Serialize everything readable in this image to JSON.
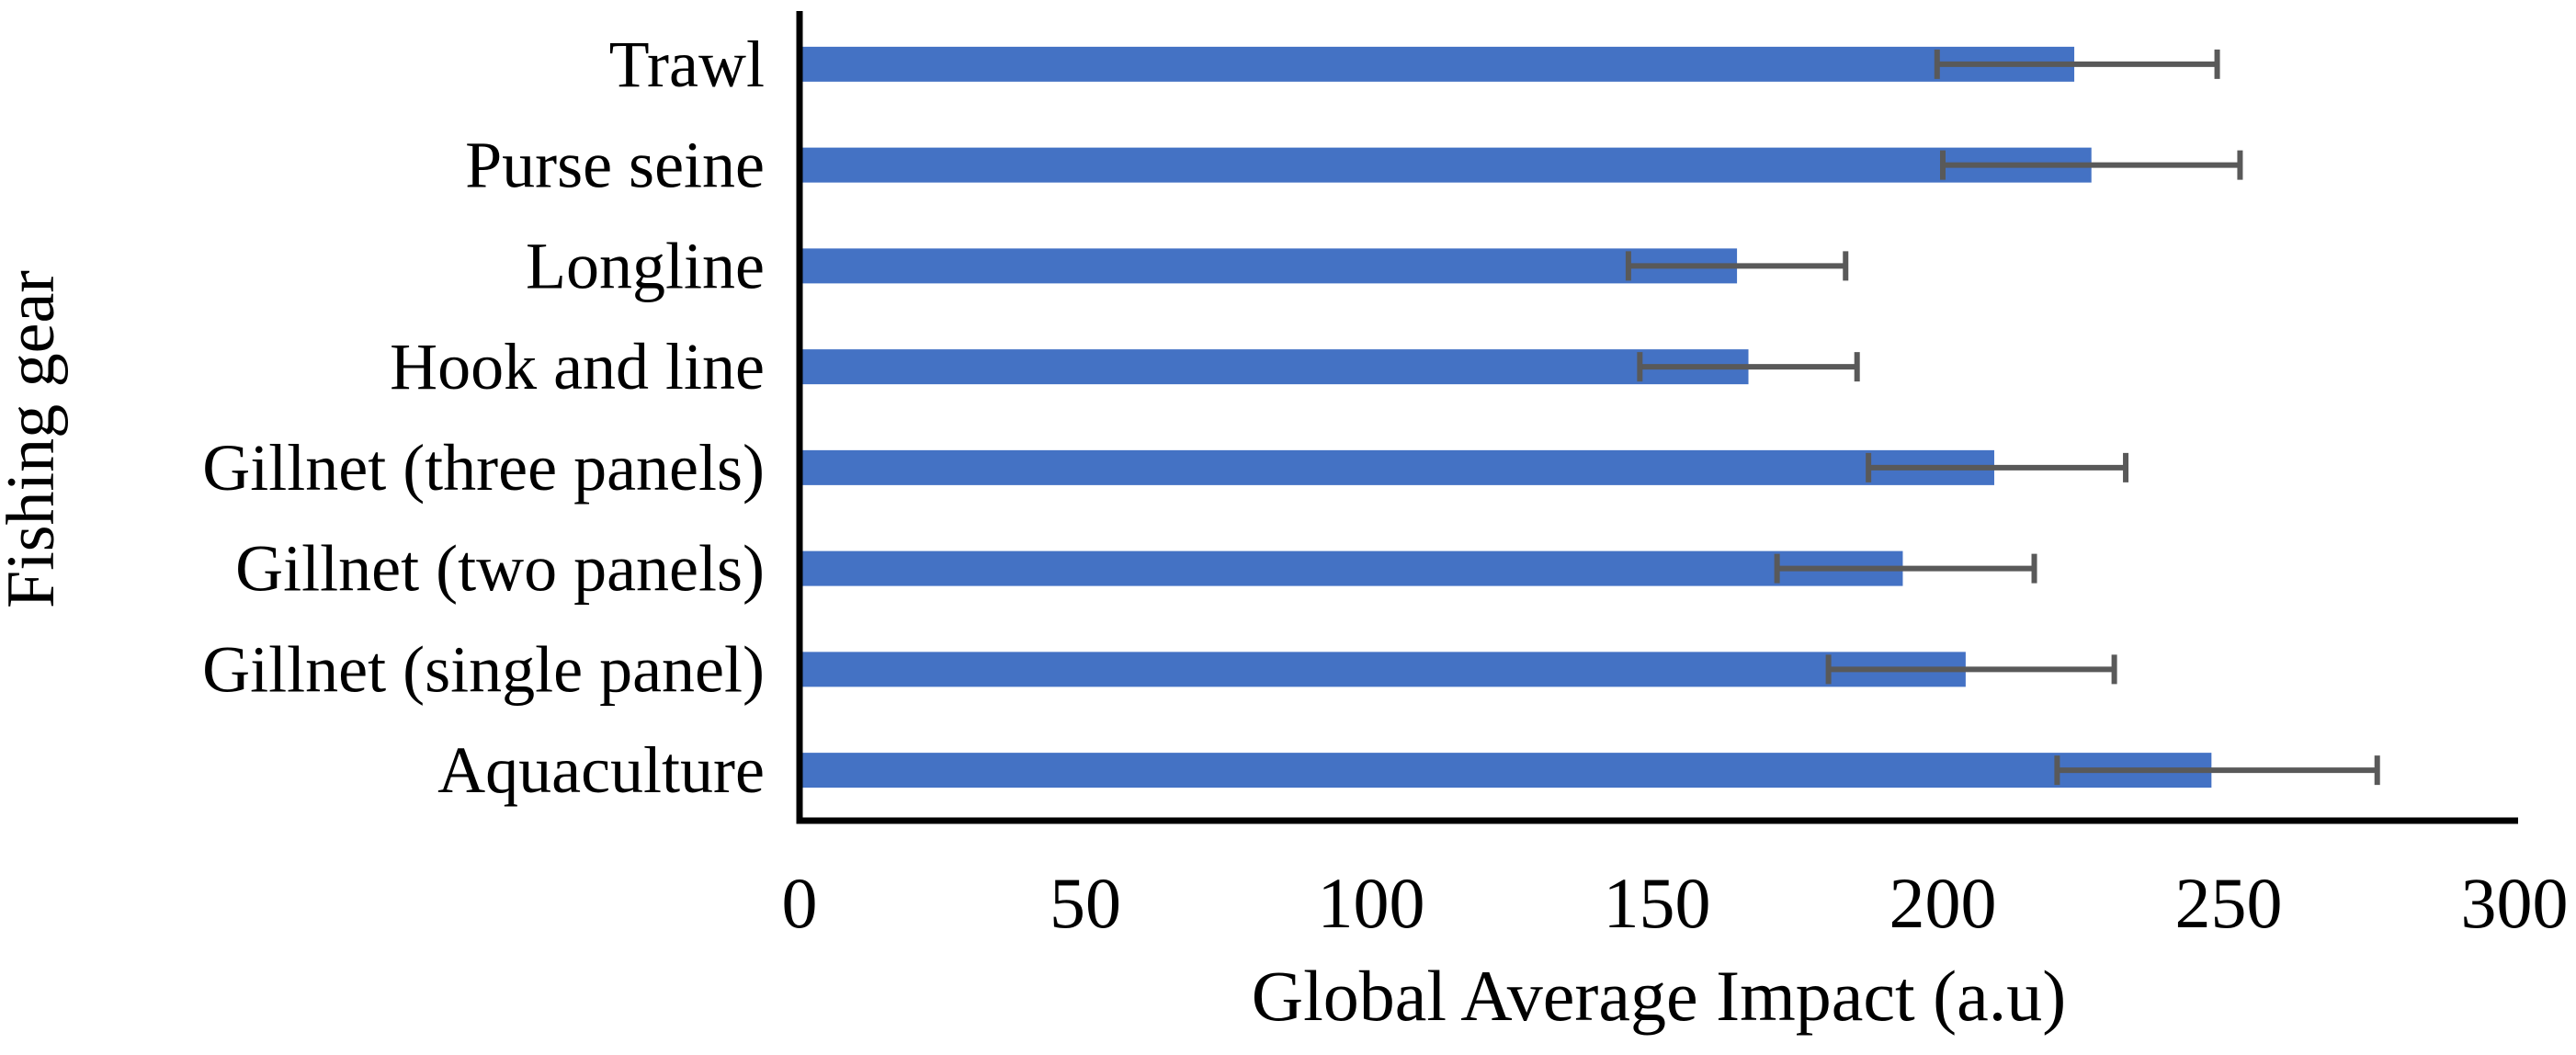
{
  "figure": {
    "background": "#ffffff"
  },
  "chart_data": {
    "type": "bar",
    "orientation": "horizontal",
    "title": "",
    "xlabel": "Global Average Impact (a.u)",
    "ylabel": "Fishing gear",
    "categories": [
      "Trawl",
      "Purse seine",
      "Longline",
      "Hook and line",
      "Gillnet (three panels)",
      "Gillnet (two panels)",
      "Gillnet (single panel)",
      "Aquaculture"
    ],
    "values": [
      223,
      226,
      164,
      166,
      209,
      193,
      204,
      247
    ],
    "error_low": [
      199,
      200,
      145,
      147,
      187,
      171,
      180,
      220
    ],
    "error_high": [
      248,
      252,
      183,
      185,
      232,
      216,
      230,
      276
    ],
    "x_ticks": [
      0,
      50,
      100,
      150,
      200,
      250,
      300
    ],
    "xlim": [
      0,
      300
    ],
    "grid": false,
    "legend": false,
    "bar_color": "#4472C4",
    "error_bar_color": "#595959",
    "axis_color": "#000000",
    "text_color": "#000000"
  }
}
